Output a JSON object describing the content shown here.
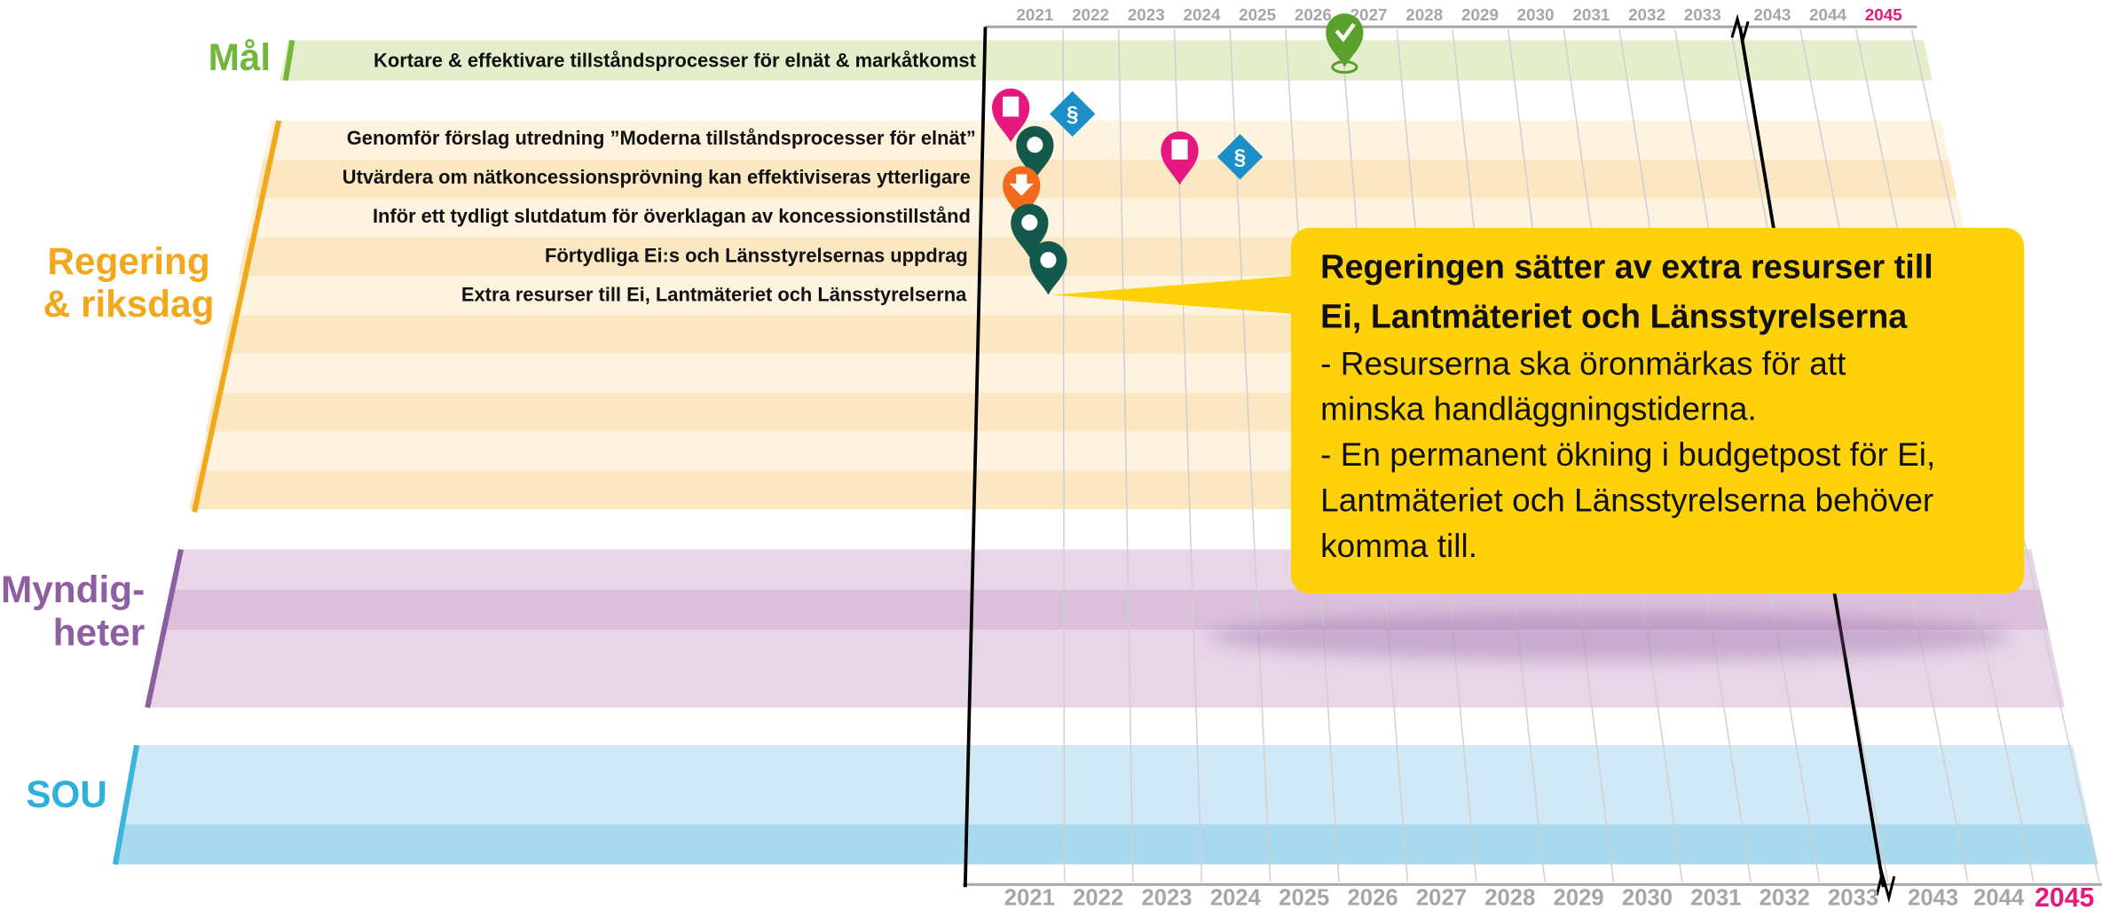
{
  "years": [
    2021,
    2022,
    2023,
    2024,
    2025,
    2026,
    2027,
    2028,
    2029,
    2030,
    2031,
    2032,
    2033,
    2043,
    2044,
    2045
  ],
  "goal": {
    "label": "Mål",
    "text": "Kortare & effektivare tillståndsprocesser för elnät & markåtkomst"
  },
  "government": {
    "label": [
      "Regering",
      "& riksdag"
    ],
    "items": [
      "Genomför förslag utredning ”Moderna tillståndsprocesser för elnät”",
      "Utvärdera om nätkoncessionsprövning kan effektiviseras ytterligare",
      "Inför ett tydligt slutdatum för överklagan av koncessionstillstånd",
      "Förtydliga Ei:s och Länsstyrelsernas uppdrag",
      "Extra resurser till Ei, Lantmäteriet och Länsstyrelserna"
    ]
  },
  "authorities": {
    "label": [
      "Myndig-",
      "heter"
    ]
  },
  "sou": {
    "label": "SOU"
  },
  "callout": {
    "title": [
      "Regeringen sätter av extra resurser till",
      "Ei, Lantmäteriet och Länsstyrelserna"
    ],
    "body": [
      "- Resurserna ska öronmärkas för att",
      "minska handläggningstiderna.",
      "- En permanent ökning i budgetpost för Ei,",
      "Lantmäteriet och Länsstyrelserna behöver",
      "komma till."
    ]
  }
}
